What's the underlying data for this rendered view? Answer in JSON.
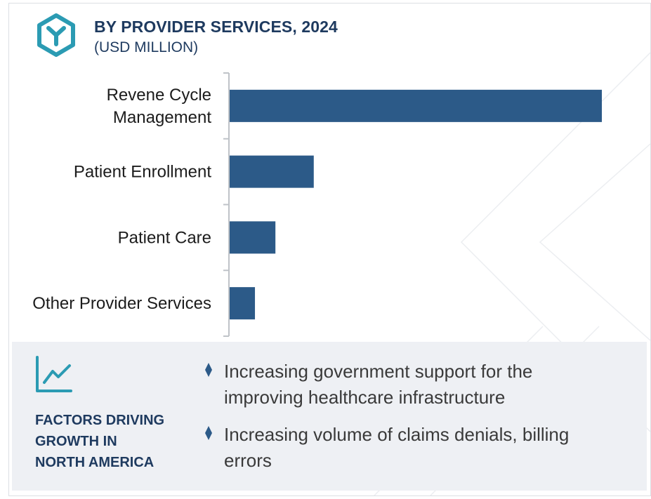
{
  "header": {
    "title": "BY PROVIDER SERVICES, 2024",
    "subtitle": "(USD MILLION)",
    "logo_icon": "hexagon-y-logo-icon"
  },
  "colors": {
    "bar": "#2c5a88",
    "title": "#1e3a5f",
    "logo": "#2b9bb3",
    "panel": "#eef0f4",
    "axis": "#bfc3c8"
  },
  "chart_data": {
    "type": "bar",
    "orientation": "horizontal",
    "categories": [
      [
        "Revene Cycle",
        "Management"
      ],
      [
        "Patient Enrollment"
      ],
      [
        "Patient Care"
      ],
      [
        "Other Provider Services"
      ]
    ],
    "values": [
      100,
      22.6,
      12.3,
      6.8
    ],
    "value_units": "relative (no numeric axis shown)",
    "title": "BY PROVIDER SERVICES, 2024",
    "subtitle": "(USD MILLION)",
    "xlabel": "",
    "ylabel": "",
    "xlim": [
      0,
      100
    ],
    "grid": false,
    "legend": "none"
  },
  "factors": {
    "icon": "trend-line-icon",
    "title_lines": [
      "FACTORS DRIVING",
      "GROWTH IN",
      "NORTH AMERICA"
    ],
    "bullets": [
      {
        "icon": "diamond-bullet-icon",
        "lines": [
          "Increasing government support for the",
          "improving healthcare infrastructure"
        ]
      },
      {
        "icon": "diamond-bullet-icon",
        "lines": [
          "Increasing volume of claims denials, billing",
          "errors"
        ]
      }
    ]
  }
}
